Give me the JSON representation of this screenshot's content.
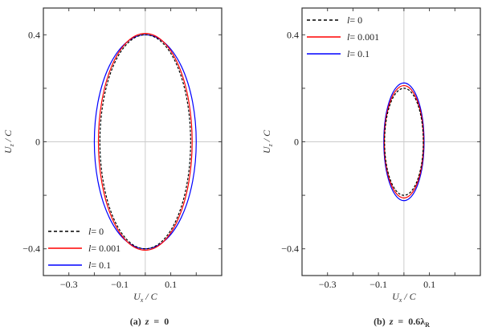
{
  "chart_data": [
    {
      "type": "line",
      "panel": "a",
      "caption": {
        "label": "(a)",
        "var": "z",
        "eq": "=",
        "value": "0",
        "sub": ""
      },
      "xlabel": {
        "main": "U",
        "sub": "x",
        "rest": " / C"
      },
      "ylabel": {
        "main": "U",
        "sub": "z",
        "rest": " / C"
      },
      "xlim": [
        -0.4,
        0.3
      ],
      "ylim": [
        -0.5,
        0.5
      ],
      "xticks": [
        -0.3,
        -0.1,
        0.1
      ],
      "xtick_labels": [
        "−0.3",
        "−0.1",
        "0.1"
      ],
      "yticks": [
        0.4,
        0,
        -0.4
      ],
      "ytick_labels": [
        "0.4",
        "0",
        "−0.4"
      ],
      "grid_lines_at_zero": true,
      "legend_position": "bottom-left",
      "series": [
        {
          "name": "l = 0",
          "label_var": "l",
          "label_val": "= 0",
          "color": "#000000",
          "dash": true,
          "semi_x": 0.178,
          "semi_z": 0.4
        },
        {
          "name": "l = 0.001",
          "label_var": "l",
          "label_val": "= 0.001",
          "color": "#ff0000",
          "dash": false,
          "semi_x": 0.184,
          "semi_z": 0.405
        },
        {
          "name": "l = 0.1",
          "label_var": "l",
          "label_val": "= 0.1",
          "color": "#0000ff",
          "dash": false,
          "semi_x": 0.2,
          "semi_z": 0.4
        }
      ]
    },
    {
      "type": "line",
      "panel": "b",
      "caption": {
        "label": "(b)",
        "var": "z",
        "eq": "=",
        "value": "0.6λ",
        "sub": "R"
      },
      "xlabel": {
        "main": "U",
        "sub": "x",
        "rest": " / C"
      },
      "ylabel": {
        "main": "U",
        "sub": "z",
        "rest": " / C"
      },
      "xlim": [
        -0.4,
        0.3
      ],
      "ylim": [
        -0.5,
        0.5
      ],
      "xticks": [
        -0.3,
        -0.1,
        0.1
      ],
      "xtick_labels": [
        "−0.3",
        "−0.1",
        "0.1"
      ],
      "yticks": [
        0.4,
        0,
        -0.4
      ],
      "ytick_labels": [
        "0.4",
        "0",
        "−0.4"
      ],
      "grid_lines_at_zero": true,
      "legend_position": "top-left",
      "series": [
        {
          "name": "l = 0",
          "label_var": "l",
          "label_val": "= 0",
          "color": "#000000",
          "dash": true,
          "semi_x": 0.076,
          "semi_z": 0.2
        },
        {
          "name": "l = 0.001",
          "label_var": "l",
          "label_val": "= 0.001",
          "color": "#ff0000",
          "dash": false,
          "semi_x": 0.077,
          "semi_z": 0.21
        },
        {
          "name": "l = 0.1",
          "label_var": "l",
          "label_val": "= 0.1",
          "color": "#0000ff",
          "dash": false,
          "semi_x": 0.079,
          "semi_z": 0.22
        }
      ]
    }
  ]
}
